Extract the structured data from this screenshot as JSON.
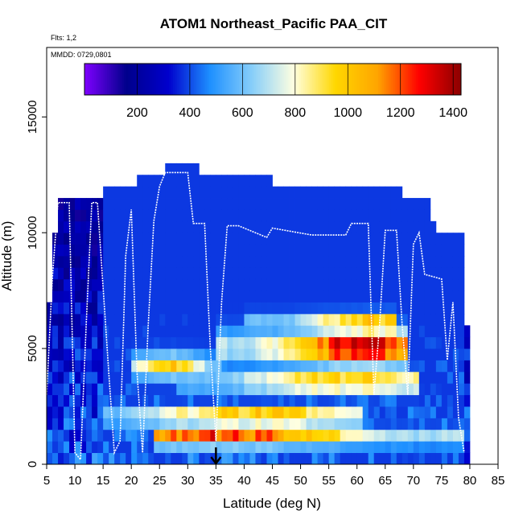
{
  "chart_data": {
    "type": "heatmap",
    "title": "ATOM1 Northeast_Pacific PAA_CIT",
    "annotations": {
      "flights": "Flts: 1,2",
      "dates": "MMDD: 0729,0801"
    },
    "xlabel": "Latitude (deg N)",
    "ylabel": "Altitude (m)",
    "xlim": [
      5,
      85
    ],
    "ylim": [
      0,
      18000
    ],
    "x_ticks": [
      5,
      10,
      15,
      20,
      25,
      30,
      35,
      40,
      45,
      50,
      55,
      60,
      65,
      70,
      75,
      80,
      85
    ],
    "y_ticks": [
      0,
      5000,
      10000,
      15000
    ],
    "colorbar": {
      "ticks": [
        200,
        400,
        600,
        800,
        1000,
        1200,
        1400
      ],
      "range": [
        0,
        1430
      ],
      "palette": [
        "#7f00ff",
        "#00008b",
        "#0000cd",
        "#1e90ff",
        "#87cefa",
        "#ffffe0",
        "#ffd700",
        "#ffa500",
        "#ff0000",
        "#8b0000"
      ]
    },
    "marker": {
      "latitude": 35,
      "altitude": 0,
      "symbol": "down-arrow"
    },
    "grid": {
      "lat_min": 5,
      "lat_max": 80,
      "lat_step": 1,
      "alt_step": 500
    },
    "coverage_top_m": [
      [
        5,
        7000
      ],
      [
        6,
        10000
      ],
      [
        7,
        11500
      ],
      [
        9,
        11500
      ],
      [
        14,
        11500
      ],
      [
        15,
        12000
      ],
      [
        20,
        12000
      ],
      [
        21,
        12500
      ],
      [
        25,
        12500
      ],
      [
        26,
        13000
      ],
      [
        31,
        13000
      ],
      [
        32,
        12500
      ],
      [
        44,
        12500
      ],
      [
        45,
        12000
      ],
      [
        67,
        12000
      ],
      [
        68,
        11500
      ],
      [
        72,
        11500
      ],
      [
        73,
        10500
      ],
      [
        74,
        10000
      ],
      [
        78,
        10000
      ],
      [
        79,
        6000
      ],
      [
        80,
        6000
      ]
    ],
    "plumes": [
      {
        "lat_range": [
          24,
          78
        ],
        "alt_m": 900,
        "width_m": 350,
        "peak": 1300,
        "peak_lat": 35
      },
      {
        "lat_range": [
          28,
          70
        ],
        "alt_m": 3300,
        "width_m": 400,
        "peak": 1120,
        "peak_lat": 58
      },
      {
        "lat_range": [
          35,
          68
        ],
        "alt_m": 4800,
        "width_m": 700,
        "peak": 1350,
        "peak_lat": 60
      },
      {
        "lat_range": [
          15,
          60
        ],
        "alt_m": 1800,
        "width_m": 350,
        "peak": 1200,
        "peak_lat": 42
      },
      {
        "lat_range": [
          20,
          35
        ],
        "alt_m": 4000,
        "width_m": 500,
        "peak": 1000,
        "peak_lat": 26
      },
      {
        "lat_range": [
          40,
          66
        ],
        "alt_m": 5800,
        "width_m": 400,
        "peak": 1180,
        "peak_lat": 62
      }
    ],
    "flight_track": {
      "style": "white line",
      "points": [
        [
          5,
          3000
        ],
        [
          6,
          8000
        ],
        [
          7,
          11300
        ],
        [
          9,
          11300
        ],
        [
          10,
          500
        ],
        [
          11,
          200
        ],
        [
          12,
          6000
        ],
        [
          13,
          11300
        ],
        [
          14,
          11300
        ],
        [
          16,
          4000
        ],
        [
          17,
          500
        ],
        [
          18,
          1000
        ],
        [
          19,
          9000
        ],
        [
          20,
          11000
        ],
        [
          21,
          4000
        ],
        [
          22,
          500
        ],
        [
          23,
          6000
        ],
        [
          24,
          10500
        ],
        [
          25,
          12000
        ],
        [
          26,
          12600
        ],
        [
          30,
          12600
        ],
        [
          31,
          10400
        ],
        [
          33,
          10400
        ],
        [
          34,
          5000
        ],
        [
          35,
          1000
        ],
        [
          36,
          7000
        ],
        [
          37,
          10300
        ],
        [
          39,
          10300
        ],
        [
          44,
          9800
        ],
        [
          45,
          10200
        ],
        [
          52,
          9900
        ],
        [
          58,
          9900
        ],
        [
          59,
          10400
        ],
        [
          62,
          10400
        ],
        [
          63,
          3000
        ],
        [
          64,
          6000
        ],
        [
          65,
          10100
        ],
        [
          67,
          10100
        ],
        [
          68,
          6000
        ],
        [
          69,
          3000
        ],
        [
          70,
          9500
        ],
        [
          71,
          10000
        ],
        [
          72,
          8200
        ],
        [
          75,
          8000
        ],
        [
          76,
          4500
        ],
        [
          77,
          7000
        ],
        [
          78,
          2000
        ],
        [
          79,
          500
        ]
      ]
    }
  }
}
